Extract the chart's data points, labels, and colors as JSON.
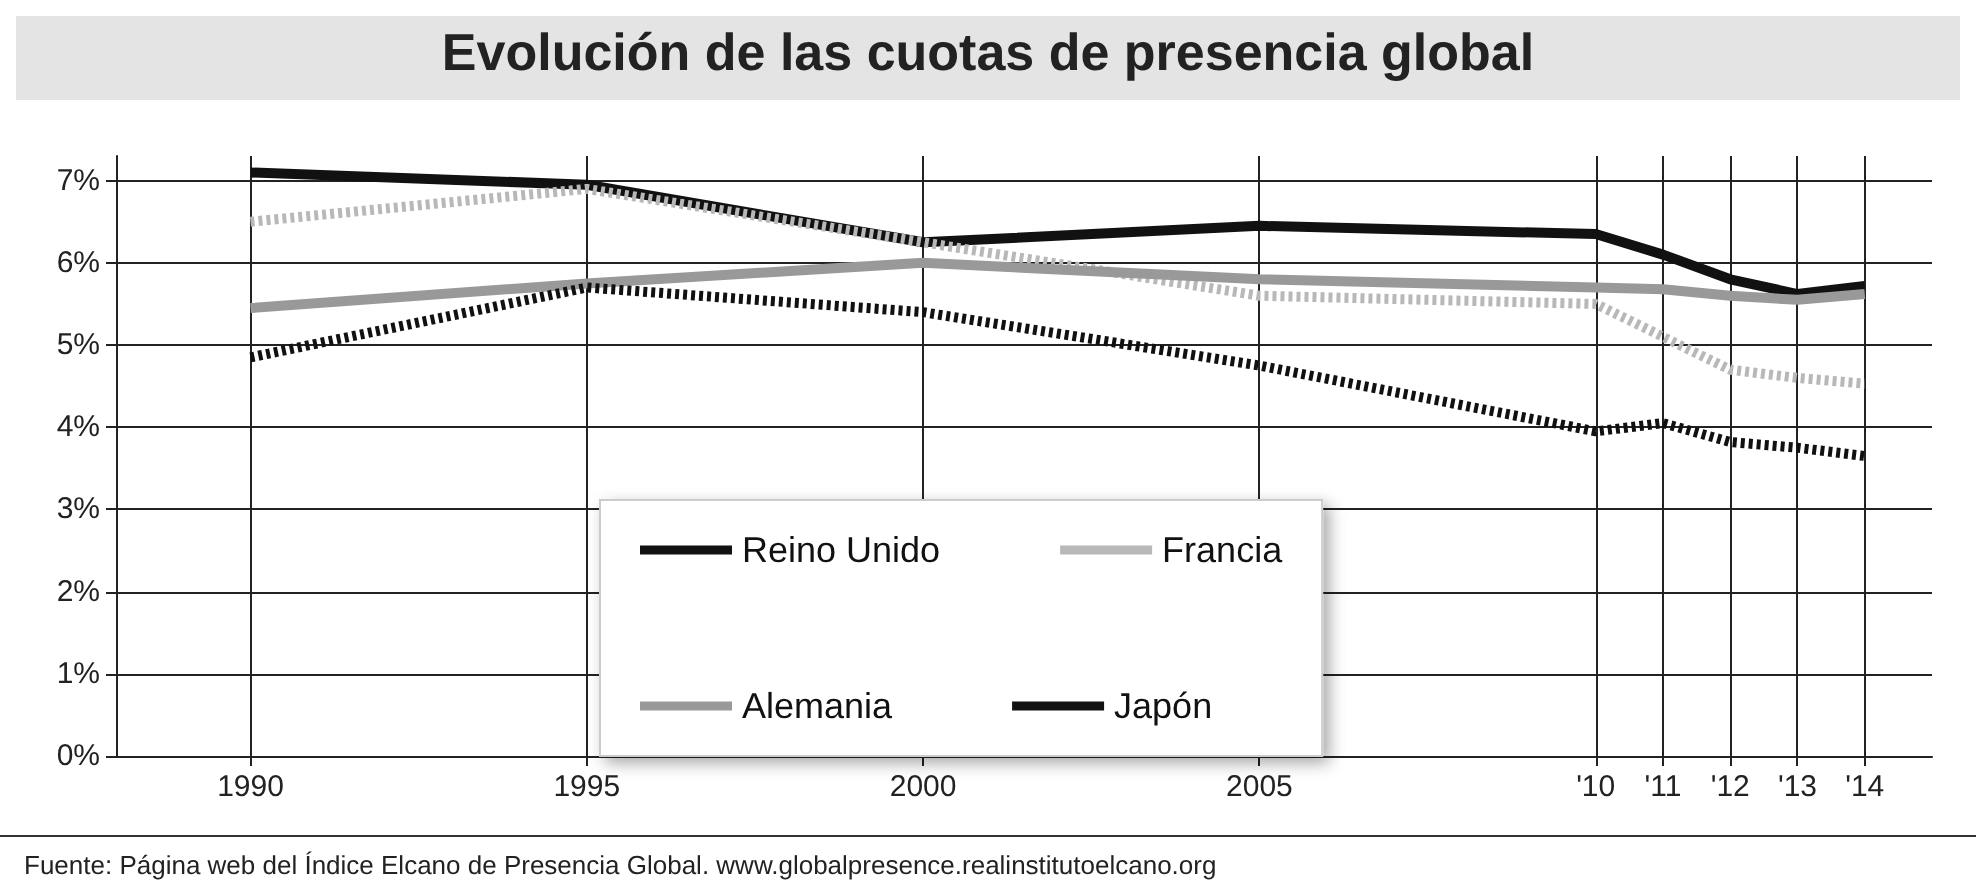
{
  "chart_data": {
    "type": "line",
    "title": "Evolución de las cuotas de presencia global",
    "x": [
      1990,
      1995,
      2000,
      2005,
      2010,
      2011,
      2012,
      2013,
      2014
    ],
    "series": [
      {
        "name": "Reino Unido",
        "color": "#111111",
        "line_style": "solid",
        "values": [
          7.1,
          6.95,
          6.25,
          6.45,
          6.35,
          6.1,
          5.8,
          5.62,
          5.72
        ]
      },
      {
        "name": "Francia",
        "color": "#b8b8b8",
        "line_style": "dotted",
        "values": [
          6.5,
          6.9,
          6.25,
          5.6,
          5.5,
          5.1,
          4.7,
          4.6,
          4.53
        ]
      },
      {
        "name": "Alemania",
        "color": "#999999",
        "line_style": "solid",
        "values": [
          5.45,
          5.75,
          6.0,
          5.8,
          5.7,
          5.68,
          5.6,
          5.55,
          5.62
        ]
      },
      {
        "name": "Japón",
        "color": "#111111",
        "line_style": "dotted",
        "values": [
          4.85,
          5.7,
          5.4,
          4.75,
          3.95,
          4.05,
          3.82,
          3.75,
          3.65
        ]
      }
    ],
    "xlim": [
      1988,
      2015
    ],
    "xticks": [
      1990,
      1995,
      2000,
      2005,
      {
        "value": 2010,
        "label": "'10"
      },
      {
        "value": 2011,
        "label": "'11"
      },
      {
        "value": 2012,
        "label": "'12"
      },
      {
        "value": 2013,
        "label": "'13"
      },
      {
        "value": 2014,
        "label": "'14"
      }
    ],
    "ylim": [
      0,
      7.3
    ],
    "yticks": [
      {
        "value": 0,
        "label": "0%"
      },
      {
        "value": 1,
        "label": "1%"
      },
      {
        "value": 2,
        "label": "2%"
      },
      {
        "value": 3,
        "label": "3%"
      },
      {
        "value": 4,
        "label": "4%"
      },
      {
        "value": 5,
        "label": "5%"
      },
      {
        "value": 6,
        "label": "6%"
      },
      {
        "value": 7,
        "label": "7%"
      }
    ],
    "grid": true,
    "legend": "bottom",
    "marker": "none",
    "annotations": [
      "Fuente: Página web del Índice Elcano de Presencia Global. www.globalpresence.realinstitutoelcano.org"
    ]
  }
}
